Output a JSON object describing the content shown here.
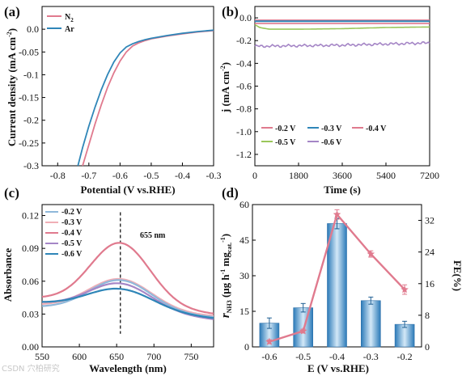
{
  "colors": {
    "pink": "#E07A8E",
    "blue": "#2F86B8",
    "green": "#9BC75A",
    "purple": "#A586C6",
    "lightblue": "#8FB8DA",
    "lightpink": "#F0AEB6",
    "bar_dark": "#2B7AB8",
    "bar_light": "#D3E8F7"
  },
  "watermark": "CSDN 穴柏研究",
  "chart_data": [
    {
      "panel": "(a)",
      "type": "line",
      "xlabel": "Potential (V vs.RHE)",
      "ylabel": "Current density (mA cm⁻²)",
      "xlim": [
        -0.85,
        -0.3
      ],
      "ylim": [
        -0.3,
        0.05
      ],
      "xticks": [
        "-0.8",
        "-0.7",
        "-0.6",
        "-0.5",
        "-0.4",
        "-0.3"
      ],
      "yticks": [
        "-0.3",
        "-0.25",
        "-0.2",
        "-0.15",
        "-0.1",
        "-0.05",
        "0.0"
      ],
      "legend": "top-left",
      "series": [
        {
          "name": "N₂",
          "color": "pink",
          "x": [
            -0.72,
            -0.7,
            -0.68,
            -0.66,
            -0.64,
            -0.62,
            -0.6,
            -0.58,
            -0.56,
            -0.54,
            -0.52,
            -0.5,
            -0.45,
            -0.4,
            -0.35,
            -0.3
          ],
          "y": [
            -0.3,
            -0.254,
            -0.208,
            -0.166,
            -0.128,
            -0.096,
            -0.07,
            -0.05,
            -0.037,
            -0.03,
            -0.025,
            -0.021,
            -0.015,
            -0.01,
            -0.006,
            -0.003
          ]
        },
        {
          "name": "Ar",
          "color": "blue",
          "x": [
            -0.735,
            -0.72,
            -0.7,
            -0.68,
            -0.66,
            -0.64,
            -0.62,
            -0.6,
            -0.58,
            -0.56,
            -0.54,
            -0.52,
            -0.5,
            -0.45,
            -0.4,
            -0.35,
            -0.3
          ],
          "y": [
            -0.3,
            -0.26,
            -0.213,
            -0.171,
            -0.133,
            -0.1,
            -0.072,
            -0.052,
            -0.039,
            -0.032,
            -0.027,
            -0.023,
            -0.02,
            -0.014,
            -0.009,
            -0.005,
            -0.002
          ]
        }
      ]
    },
    {
      "panel": "(b)",
      "type": "line",
      "xlabel": "Time (s)",
      "ylabel": "j (mA cm⁻²)",
      "xlim": [
        0,
        7200
      ],
      "ylim": [
        -1.3,
        0.1
      ],
      "xticks": [
        "0",
        "1800",
        "3600",
        "5400",
        "7200"
      ],
      "yticks": [
        "-1.2",
        "-1.0",
        "-0.8",
        "-0.6",
        "-0.4",
        "-0.2",
        "0.0"
      ],
      "legend": "bottom",
      "series": [
        {
          "name": "-0.2 V",
          "color": "pink",
          "x": [
            0,
            7200
          ],
          "y": [
            -0.02,
            -0.02
          ]
        },
        {
          "name": "-0.3 V",
          "color": "blue",
          "x": [
            0,
            7200
          ],
          "y": [
            -0.03,
            -0.03
          ]
        },
        {
          "name": "-0.4 V",
          "color": "pink",
          "x": [
            0,
            7200
          ],
          "y": [
            -0.05,
            -0.05
          ]
        },
        {
          "name": "-0.5 V",
          "color": "green",
          "x": [
            0,
            200,
            600,
            1800,
            3600,
            5400,
            7200
          ],
          "y": [
            -0.06,
            -0.085,
            -0.1,
            -0.1,
            -0.095,
            -0.085,
            -0.08
          ]
        },
        {
          "name": "-0.6 V",
          "color": "purple",
          "x": [
            0,
            1800,
            3600,
            5400,
            7200
          ],
          "y": [
            -0.25,
            -0.245,
            -0.24,
            -0.23,
            -0.22
          ]
        }
      ]
    },
    {
      "panel": "(c)",
      "type": "line",
      "xlabel": "Wavelength (nm)",
      "ylabel": "Absorbance",
      "xlim": [
        550,
        780
      ],
      "ylim": [
        0.0,
        0.13
      ],
      "xticks": [
        "550",
        "600",
        "650",
        "700",
        "750"
      ],
      "yticks": [
        "0.00",
        "0.03",
        "0.06",
        "0.09",
        "0.12"
      ],
      "annotation": "655 nm",
      "marker_x": 655,
      "legend": "top-left",
      "series": [
        {
          "name": "-0.2 V",
          "color": "lightblue",
          "base": 0.036,
          "peak": 0.061,
          "tail": 0.027,
          "sigma": 42
        },
        {
          "name": "-0.3 V",
          "color": "lightpink",
          "base": 0.038,
          "peak": 0.062,
          "tail": 0.028,
          "sigma": 42
        },
        {
          "name": "-0.4 V",
          "color": "pink",
          "base": 0.044,
          "peak": 0.095,
          "tail": 0.03,
          "sigma": 40
        },
        {
          "name": "-0.5 V",
          "color": "purple",
          "base": 0.04,
          "peak": 0.058,
          "tail": 0.025,
          "sigma": 42
        },
        {
          "name": "-0.6 V",
          "color": "blue",
          "base": 0.04,
          "peak": 0.053,
          "tail": 0.026,
          "sigma": 44
        }
      ]
    },
    {
      "panel": "(d)",
      "type": "bar",
      "xlabel": "E (V vs.RHE)",
      "ylabel": "r_NH3 (μg h⁻¹ mg_cat.⁻¹)",
      "y2label": "FE(%)",
      "categories": [
        "-0.6",
        "-0.5",
        "-0.4",
        "-0.3",
        "-0.2"
      ],
      "values": [
        10,
        16.5,
        52,
        19.5,
        9.5
      ],
      "errors": [
        2.2,
        1.8,
        2.2,
        1.5,
        1.3
      ],
      "ylim": [
        0,
        60
      ],
      "yticks": [
        "0",
        "15",
        "30",
        "45",
        "60"
      ],
      "fe_values": [
        1.3,
        4,
        33.5,
        23.5,
        14.5
      ],
      "fe_errors": [
        0.5,
        0.5,
        1.2,
        0.8,
        1.2
      ],
      "y2lim": [
        0,
        36
      ],
      "y2ticks": [
        "0",
        "8",
        "16",
        "24",
        "32"
      ]
    }
  ],
  "labels": {
    "panel_a": "(a)",
    "panel_b": "(b)",
    "panel_c": "(c)",
    "panel_d": "(d)",
    "a_x_title": "Potential (V vs.RHE)",
    "a_y_title": "Current density (mA cm",
    "a_y_sup": "-2",
    "a_y_end": ")",
    "b_x_title": "Time (s)",
    "b_y_title": "j (mA cm",
    "b_y_sup": "-2",
    "b_y_end": ")",
    "c_x_title": "Wavelength (nm)",
    "c_y_title": "Absorbance",
    "d_x_title": "E (V vs.RHE)",
    "d_y2_title": "FE(%)",
    "d_y_r": "r",
    "d_y_nh3": "NH3",
    "d_y_mid": " (μg h",
    "d_y_sup1": "-1",
    "d_y_mg": " mg",
    "d_y_cat": "cat.",
    "d_y_sup2": "-1",
    "d_y_end": ")",
    "c_annotation": "655 nm",
    "leg_n2_main": "N",
    "leg_n2_sub": "2",
    "leg_ar": "Ar"
  }
}
